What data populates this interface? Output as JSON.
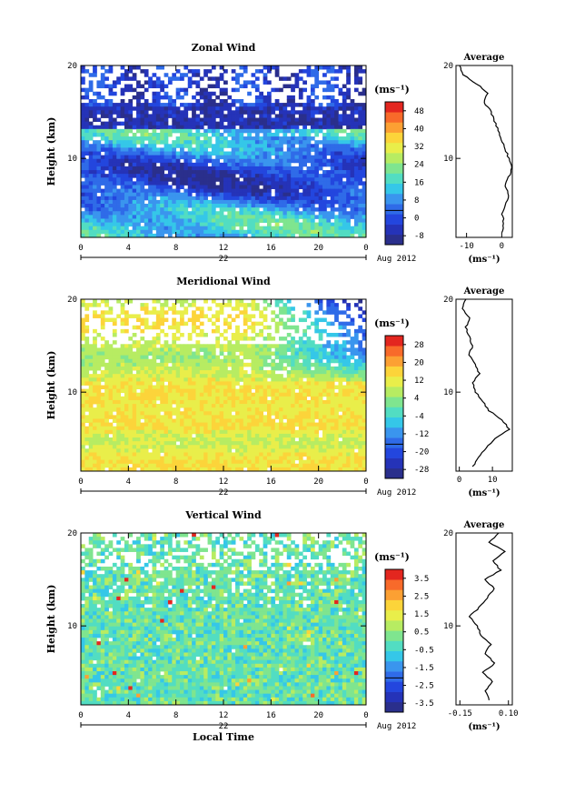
{
  "colors": {
    "cmap": [
      "#2a2f8c",
      "#2533b8",
      "#2346de",
      "#2f6be8",
      "#3a95ee",
      "#35c7e8",
      "#52ddc2",
      "#7fe58f",
      "#b7ec62",
      "#e9ee4a",
      "#fcd43a",
      "#fca033",
      "#f86a2a",
      "#e3261f"
    ],
    "axis": "#000000",
    "blank": "#ffffff"
  },
  "chart_data": [
    {
      "type": "heatmap",
      "title": "Zonal Wind",
      "ylabel": "Height (km)",
      "xlabel": "",
      "x_ticks": [
        "0",
        "4",
        "8",
        "12",
        "16",
        "20",
        "0"
      ],
      "y_ticks": [
        "20",
        "10"
      ],
      "day_label": "22",
      "month_label": "Aug 2012",
      "xlim": [
        0,
        24
      ],
      "ylim": [
        1.5,
        20
      ],
      "colorbar": {
        "unit_label": "(ms⁻¹)",
        "ticks": [
          "48",
          "40",
          "32",
          "24",
          "16",
          "8",
          "0",
          "-8"
        ],
        "vmin": -12,
        "vmax": 52
      },
      "profile": {
        "title": "Average",
        "x_ticks": [
          "-10",
          "0"
        ],
        "xlim": [
          -13,
          3
        ],
        "unit_label": "(ms⁻¹)",
        "y_ticks": [
          "20",
          "10"
        ],
        "heights": [
          2,
          3,
          4,
          5,
          6,
          7,
          8,
          9,
          10,
          11,
          12,
          13,
          14,
          15,
          16,
          17,
          18,
          19,
          20
        ],
        "values": [
          0,
          0.5,
          0.2,
          1,
          2,
          1,
          2,
          3,
          2,
          1,
          0,
          -1,
          -2,
          -3,
          -5,
          -4,
          -7,
          -11,
          -12
        ]
      }
    },
    {
      "type": "heatmap",
      "title": "Meridional Wind",
      "ylabel": "Height (km)",
      "xlabel": "",
      "x_ticks": [
        "0",
        "4",
        "8",
        "12",
        "16",
        "20",
        "0"
      ],
      "y_ticks": [
        "20",
        "10"
      ],
      "day_label": "22",
      "month_label": "Aug 2012",
      "xlim": [
        0,
        24
      ],
      "ylim": [
        1.5,
        20
      ],
      "colorbar": {
        "unit_label": "(ms⁻¹)",
        "ticks": [
          "28",
          "20",
          "12",
          "4",
          "-4",
          "-12",
          "-20",
          "-28"
        ],
        "vmin": -32,
        "vmax": 32
      },
      "profile": {
        "title": "Average",
        "x_ticks": [
          "0",
          "10"
        ],
        "xlim": [
          -1,
          16
        ],
        "unit_label": "(ms⁻¹)",
        "y_ticks": [
          "20",
          "10"
        ],
        "heights": [
          2,
          3,
          4,
          5,
          6,
          7,
          8,
          9,
          10,
          11,
          12,
          13,
          14,
          15,
          16,
          17,
          18,
          19,
          20
        ],
        "values": [
          4,
          6,
          8,
          11,
          15,
          13,
          9,
          7,
          5,
          4,
          6,
          5,
          3,
          4,
          3,
          2,
          3,
          1,
          2
        ]
      }
    },
    {
      "type": "heatmap",
      "title": "Vertical Wind",
      "ylabel": "Height (km)",
      "xlabel": "Local Time",
      "x_ticks": [
        "0",
        "4",
        "8",
        "12",
        "16",
        "20",
        "0"
      ],
      "y_ticks": [
        "20",
        "10"
      ],
      "day_label": "22",
      "month_label": "Aug 2012",
      "xlim": [
        0,
        24
      ],
      "ylim": [
        1.5,
        20
      ],
      "colorbar": {
        "unit_label": "(ms⁻¹)",
        "ticks": [
          "3.5",
          "2.5",
          "1.5",
          "0.5",
          "-0.5",
          "-1.5",
          "-2.5",
          "-3.5"
        ],
        "vmin": -4,
        "vmax": 4
      },
      "profile": {
        "title": "Average",
        "x_ticks": [
          "-0.15",
          "0.10"
        ],
        "xlim": [
          -0.17,
          0.12
        ],
        "unit_label": "(ms⁻¹)",
        "y_ticks": [
          "20",
          "10"
        ],
        "heights": [
          2,
          3,
          4,
          5,
          6,
          7,
          8,
          9,
          10,
          11,
          12,
          13,
          14,
          15,
          16,
          17,
          18,
          19,
          20
        ],
        "values": [
          0.0,
          -0.02,
          0.02,
          -0.03,
          0.03,
          -0.02,
          0.01,
          -0.04,
          -0.06,
          -0.1,
          -0.05,
          -0.01,
          0.03,
          -0.02,
          0.06,
          0.02,
          0.08,
          0.0,
          0.05
        ]
      }
    }
  ]
}
